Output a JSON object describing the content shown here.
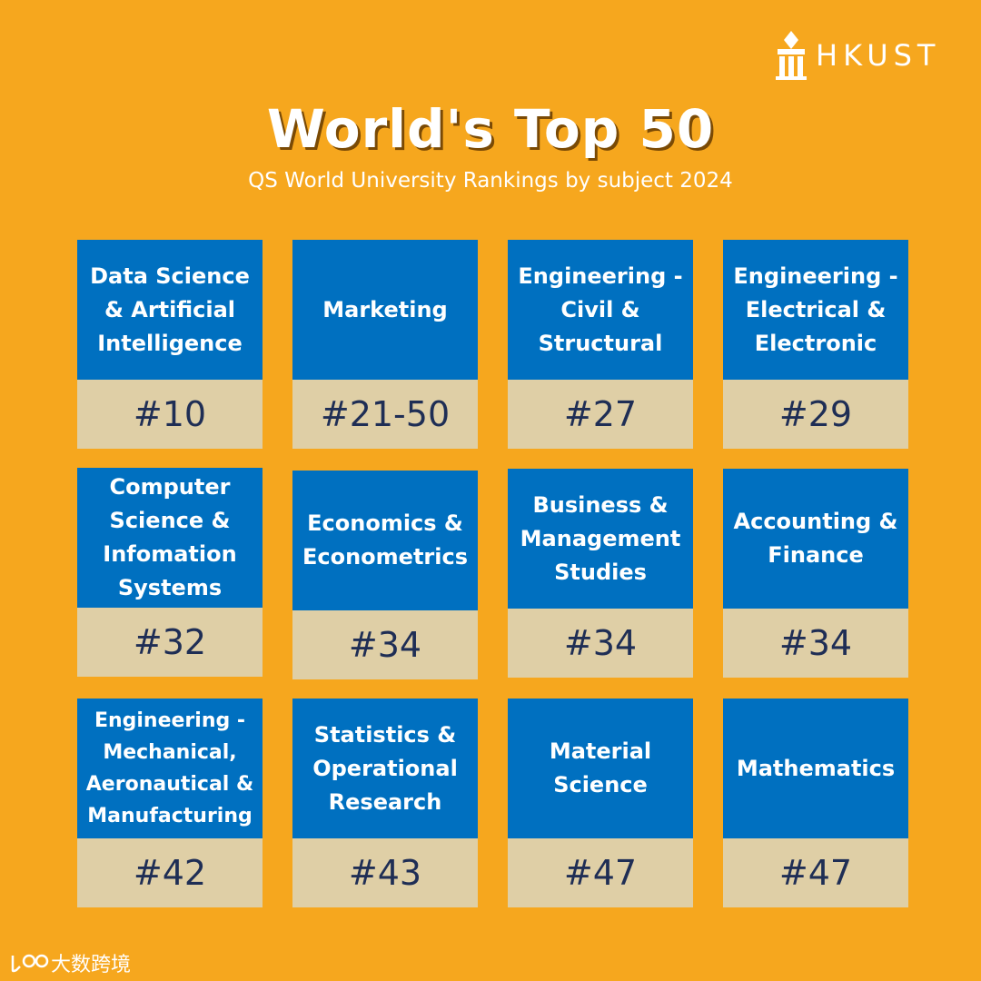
{
  "logo": {
    "text": "HKUST"
  },
  "header": {
    "title": "World's Top 50",
    "subtitle": "QS World University Rankings by subject 2024"
  },
  "cards": [
    {
      "subject": "Data Science & Artificial Intelligence",
      "rank": "#10"
    },
    {
      "subject": "Marketing",
      "rank": "#21-50"
    },
    {
      "subject": "Engineering - Civil & Structural",
      "rank": "#27"
    },
    {
      "subject": "Engineering - Electrical & Electronic",
      "rank": "#29"
    },
    {
      "subject": "Computer Science & Infomation Systems",
      "rank": "#32"
    },
    {
      "subject": "Economics & Econometrics",
      "rank": "#34"
    },
    {
      "subject": "Business & Management Studies",
      "rank": "#34"
    },
    {
      "subject": "Accounting & Finance",
      "rank": "#34"
    },
    {
      "subject": "Engineering - Mechanical, Aeronautical & Manufacturing",
      "rank": "#42"
    },
    {
      "subject": "Statistics & Operational Research",
      "rank": "#43"
    },
    {
      "subject": "Material Science",
      "rank": "#47"
    },
    {
      "subject": "Mathematics",
      "rank": "#47"
    }
  ],
  "watermark": {
    "text": "大数跨境"
  },
  "colors": {
    "background": "#F6A71E",
    "card_top": "#0070C0",
    "card_bottom": "#DFCFA6",
    "rank_text": "#1F2E55"
  }
}
